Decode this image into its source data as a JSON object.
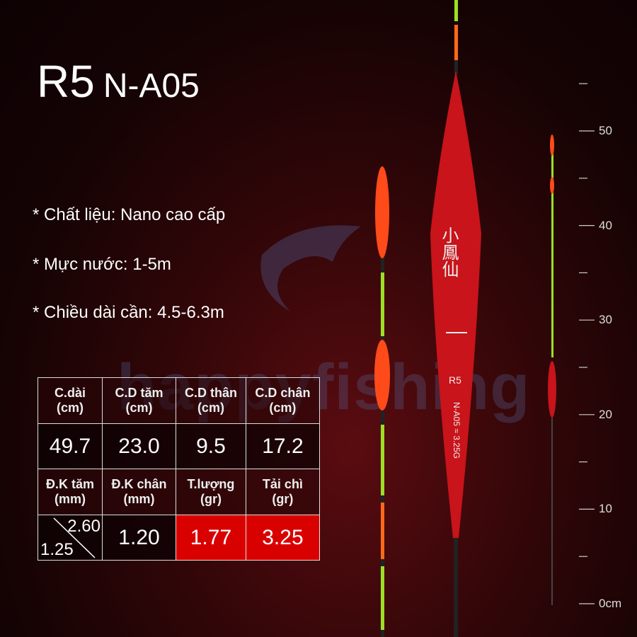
{
  "title": {
    "model": "R5",
    "code": "N-A05"
  },
  "specs": [
    "* Chất liệu: Nano cao cấp",
    "* Mực nước: 1-5m",
    "* Chiều dài cần: 4.5-6.3m"
  ],
  "watermark": "happyfishing",
  "float_markings": {
    "chinese": "小鳳仙",
    "model": "R5",
    "code": "N-A05 ≈ 3.25G"
  },
  "table": {
    "row1_headers": [
      [
        "C.dài",
        "(cm)"
      ],
      [
        "C.D tăm",
        "(cm)"
      ],
      [
        "C.D thân",
        "(cm)"
      ],
      [
        "C.D chân",
        "(cm)"
      ]
    ],
    "row1_values": [
      "49.7",
      "23.0",
      "9.5",
      "17.2"
    ],
    "row2_headers": [
      [
        "Đ.K tăm",
        "(mm)"
      ],
      [
        "Đ.K chân",
        "(mm)"
      ],
      [
        "T.lượng",
        "(gr)"
      ],
      [
        "Tải chì",
        "(gr)"
      ]
    ],
    "row2_values": {
      "dk_tam_top": "2.60",
      "dk_tam_bottom": "1.25",
      "dk_chan": "1.20",
      "trong_luong": "1.77",
      "tai_chi": "3.25"
    }
  },
  "ruler": {
    "labels": [
      "50",
      "40",
      "30",
      "20",
      "10",
      "0cm"
    ]
  },
  "colors": {
    "highlight": "#d90000",
    "float_red": "#c8141a",
    "tip_orange": "#ff4a1a",
    "tip_green": "#9be024"
  }
}
